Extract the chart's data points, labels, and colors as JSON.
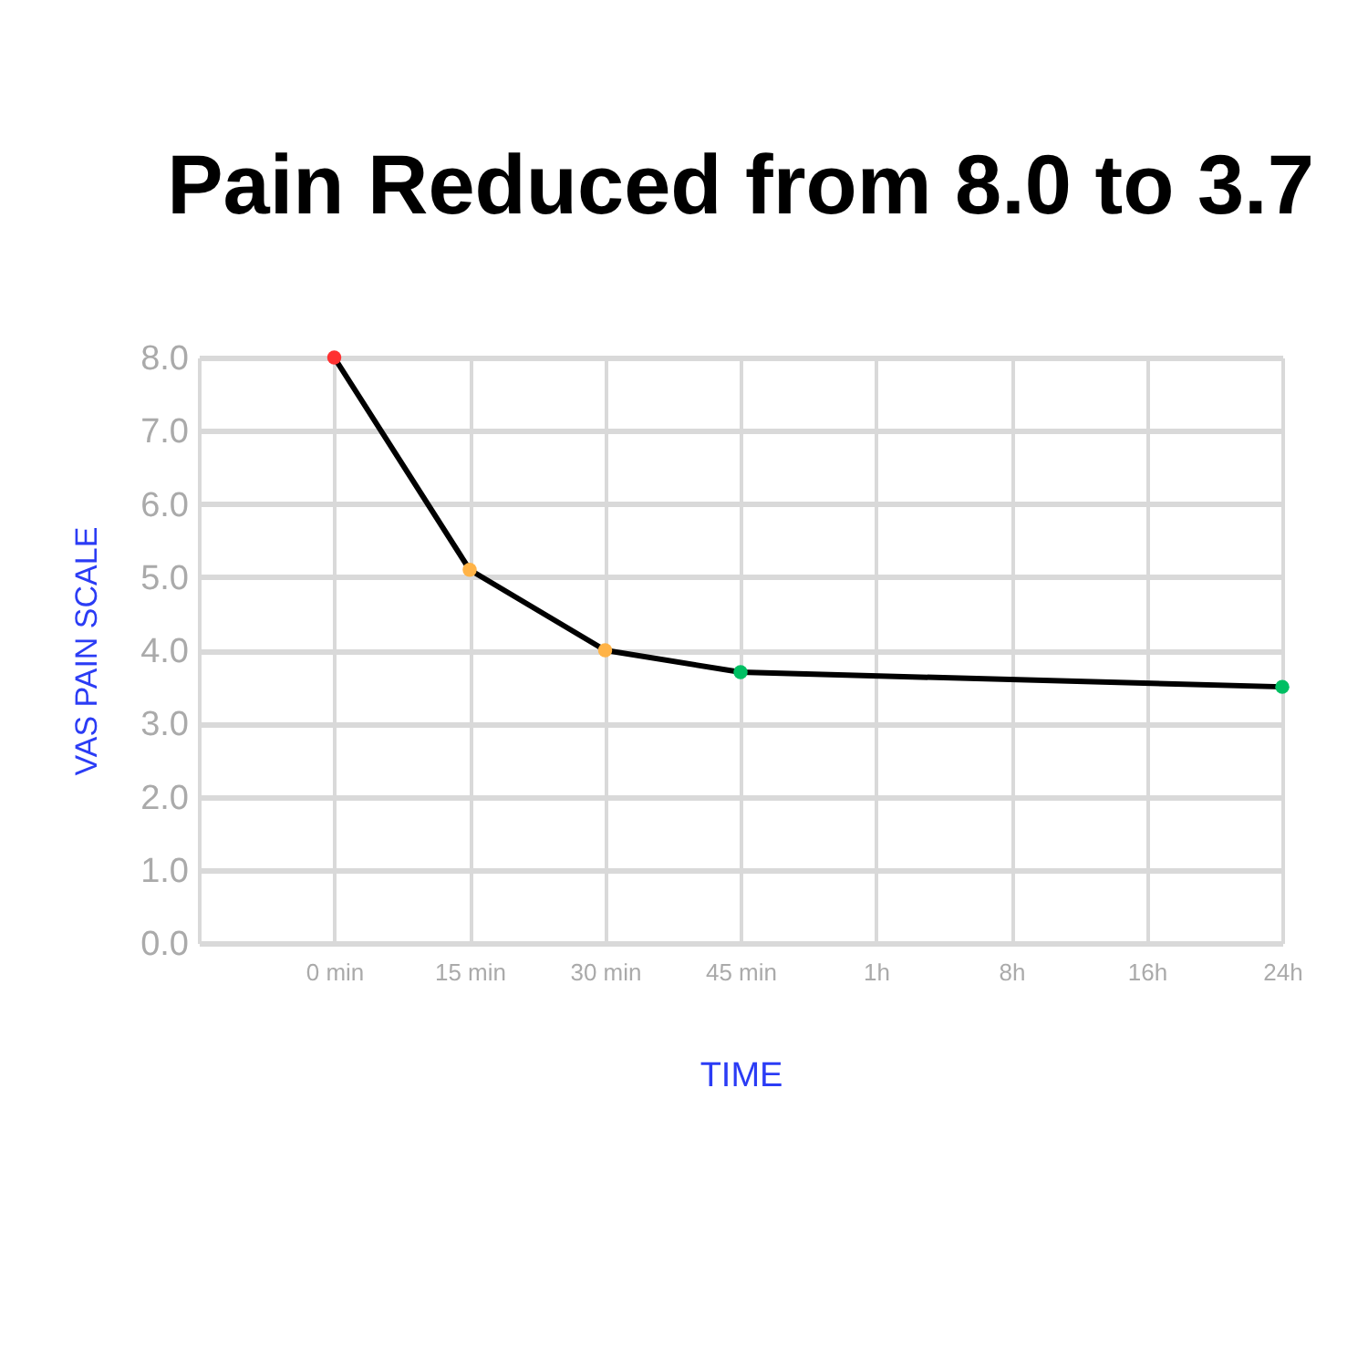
{
  "chart_data": {
    "type": "line",
    "title": "Pain Reduced from 8.0 to 3.7",
    "xlabel": "TIME",
    "ylabel": "VAS PAIN SCALE",
    "categories": [
      null,
      "0 min",
      "15 min",
      "30 min",
      "45 min",
      "1h",
      "8h",
      "16h",
      "24h"
    ],
    "series": [
      {
        "color": "#000000",
        "colors": [
          null,
          "#ff3131",
          "#ffb347",
          "#ffb347",
          "#00bf63",
          null,
          null,
          null,
          "#00bf63"
        ],
        "values": [
          null,
          8.0,
          5.1,
          4.0,
          3.7,
          null,
          null,
          null,
          3.5
        ]
      }
    ],
    "ylim": [
      0,
      8
    ],
    "yticks": [
      {
        "value": 0,
        "label": "0.0"
      },
      {
        "value": 1,
        "label": "1.0"
      },
      {
        "value": 2,
        "label": "2.0"
      },
      {
        "value": 3,
        "label": "3.0"
      },
      {
        "value": 4,
        "label": "4.0"
      },
      {
        "value": 5,
        "label": "5.0"
      },
      {
        "value": 6,
        "label": "6.0"
      },
      {
        "value": 7,
        "label": "7.0"
      },
      {
        "value": 8,
        "label": "8.0"
      }
    ],
    "grid": true,
    "marker": "circle",
    "line_style": "solid"
  }
}
